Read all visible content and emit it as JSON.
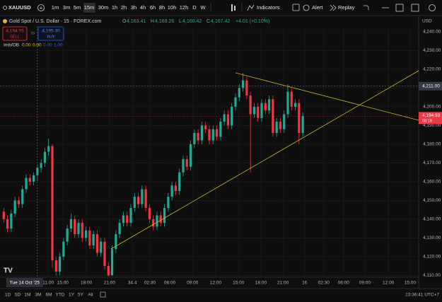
{
  "toolbar": {
    "symbol": "XAUUSD",
    "intervals": [
      "1m",
      "3m",
      "5m",
      "15m",
      "30m",
      "1h",
      "2h",
      "3h",
      "4h",
      "6h",
      "8h",
      "10h",
      "12h",
      "D",
      "W"
    ],
    "indicators": "Indicators",
    "alert": "Alert",
    "replay": "Replay"
  },
  "header": {
    "title": "Gold Spot / U.S. Dollar · 15 · FOREX.com",
    "ohlc": [
      {
        "key": "O",
        "value": "4,163.41"
      },
      {
        "key": "H",
        "value": "4,169.26"
      },
      {
        "key": "L",
        "value": "4,160.42"
      },
      {
        "key": "C",
        "value": "4,167.42"
      }
    ],
    "change": "+4.01 (+0.10%)"
  },
  "trade": {
    "sell_price": "4,194.55",
    "sell": "SELL",
    "spread": "75",
    "buy_price": "4,195.30",
    "buy": "BUY"
  },
  "indicator": {
    "name": "Imb/OB",
    "values": [
      "0.00",
      "0.00",
      "0.00",
      "1.00"
    ]
  },
  "chart_data": {
    "type": "candlestick",
    "currency": "USD",
    "up_color": "#22ab94",
    "down_color": "#f23645",
    "grid": true,
    "ohlc": [
      [
        4144,
        4146,
        4138,
        4140
      ],
      [
        4140,
        4142,
        4133,
        4135
      ],
      [
        4135,
        4145,
        4133,
        4143
      ],
      [
        4143,
        4152,
        4141,
        4150
      ],
      [
        4150,
        4152,
        4146,
        4148
      ],
      [
        4148,
        4158,
        4146,
        4156
      ],
      [
        4156,
        4164,
        4154,
        4162
      ],
      [
        4162,
        4164,
        4158,
        4160
      ],
      [
        4160,
        4165,
        4158,
        4163.41
      ],
      [
        4163.41,
        4169.26,
        4160.42,
        4167.42
      ],
      [
        4167.42,
        4172,
        4165,
        4170
      ],
      [
        4170,
        4178,
        4168,
        4176
      ],
      [
        4176,
        4183,
        4174,
        4179
      ],
      [
        4179,
        4180,
        4114,
        4118
      ],
      [
        4118,
        4120,
        4110,
        4112
      ],
      [
        4112,
        4122,
        4110,
        4120
      ],
      [
        4120,
        4130,
        4118,
        4128
      ],
      [
        4128,
        4137,
        4126,
        4135
      ],
      [
        4135,
        4143,
        4133,
        4140
      ],
      [
        4140,
        4142,
        4130,
        4132
      ],
      [
        4132,
        4140,
        4130,
        4138
      ],
      [
        4138,
        4140,
        4128,
        4130
      ],
      [
        4130,
        4136,
        4128,
        4134
      ],
      [
        4134,
        4136,
        4124,
        4126
      ],
      [
        4126,
        4134,
        4124,
        4132
      ],
      [
        4132,
        4134,
        4120,
        4122
      ],
      [
        4122,
        4130,
        4120,
        4128
      ],
      [
        4128,
        4130,
        4113,
        4115
      ],
      [
        4115,
        4117,
        4109.5,
        4110
      ],
      [
        4110,
        4126,
        4110,
        4124
      ],
      [
        4124,
        4134,
        4122,
        4132
      ],
      [
        4132,
        4140,
        4130,
        4138
      ],
      [
        4138,
        4144,
        4136,
        4142
      ],
      [
        4142,
        4144,
        4136,
        4138
      ],
      [
        4138,
        4148,
        4136,
        4146
      ],
      [
        4146,
        4154,
        4144,
        4152
      ],
      [
        4152,
        4154,
        4146,
        4148
      ],
      [
        4148,
        4158,
        4146,
        4156
      ],
      [
        4156,
        4158,
        4144,
        4146
      ],
      [
        4146,
        4148,
        4138,
        4140
      ],
      [
        4140,
        4142,
        4134,
        4136
      ],
      [
        4136,
        4144,
        4134,
        4142
      ],
      [
        4142,
        4144,
        4136,
        4138
      ],
      [
        4138,
        4148,
        4136,
        4146
      ],
      [
        4146,
        4154,
        4144,
        4152
      ],
      [
        4152,
        4160,
        4150,
        4158
      ],
      [
        4158,
        4160,
        4153,
        4155
      ],
      [
        4155,
        4167,
        4153,
        4165
      ],
      [
        4165,
        4174,
        4163,
        4172
      ],
      [
        4172,
        4174,
        4166,
        4168
      ],
      [
        4168,
        4182,
        4166,
        4180
      ],
      [
        4180,
        4188,
        4178,
        4186
      ],
      [
        4186,
        4188,
        4180,
        4182
      ],
      [
        4182,
        4192,
        4180,
        4190
      ],
      [
        4190,
        4192,
        4186,
        4188
      ],
      [
        4188,
        4190,
        4180,
        4182
      ],
      [
        4182,
        4190,
        4180,
        4188
      ],
      [
        4188,
        4190,
        4182,
        4184
      ],
      [
        4184,
        4194,
        4182,
        4192
      ],
      [
        4192,
        4198,
        4190,
        4196
      ],
      [
        4196,
        4198,
        4188,
        4190
      ],
      [
        4190,
        4202,
        4188,
        4200
      ],
      [
        4200,
        4207,
        4198,
        4205
      ],
      [
        4205,
        4212,
        4203,
        4210
      ],
      [
        4210,
        4218,
        4208,
        4214
      ],
      [
        4214,
        4216,
        4204,
        4206
      ],
      [
        4206,
        4208,
        4165,
        4196
      ],
      [
        4196,
        4202,
        4194,
        4200
      ],
      [
        4200,
        4202,
        4192,
        4194
      ],
      [
        4194,
        4204,
        4192,
        4202
      ],
      [
        4202,
        4204,
        4196,
        4198
      ],
      [
        4198,
        4206,
        4196,
        4204
      ],
      [
        4204,
        4206,
        4184,
        4186
      ],
      [
        4186,
        4194,
        4184,
        4192
      ],
      [
        4192,
        4194,
        4186,
        4188
      ],
      [
        4188,
        4198,
        4186,
        4196
      ],
      [
        4196,
        4212,
        4194,
        4208
      ],
      [
        4208,
        4210,
        4198,
        4200
      ],
      [
        4200,
        4204,
        4198,
        4202
      ],
      [
        4202,
        4204,
        4180,
        4186
      ],
      [
        4186,
        4197,
        4184,
        4194.93
      ]
    ],
    "xlim": [
      -1,
      111
    ],
    "xticks": [
      {
        "value": 11.9,
        "label": "11:00"
      },
      {
        "value": 15.8,
        "label": "15:00"
      },
      {
        "value": 22.1,
        "label": "18:00"
      },
      {
        "value": 28.3,
        "label": "21:00"
      },
      34.4,
      {
        "value": 39.1,
        "label": "02:30"
      },
      {
        "value": 44.4,
        "label": "06:00"
      },
      {
        "value": 50.5,
        "label": "09:00"
      },
      {
        "value": 56.7,
        "label": "12:00"
      },
      {
        "value": 62.8,
        "label": "15:00"
      },
      {
        "value": 68.8,
        "label": "18:00"
      },
      {
        "value": 74.7,
        "label": "21:00"
      },
      {
        "value": 80.5,
        "label": "16"
      },
      {
        "value": 85.6,
        "label": "02:30"
      },
      {
        "value": 90.9,
        "label": "06:00"
      },
      {
        "value": 96.6,
        "label": "09:00"
      },
      {
        "value": 102.9,
        "label": "12:00"
      },
      {
        "value": 108.7,
        "label": "15:00"
      }
    ],
    "ylim": [
      4109,
      4243
    ],
    "yticks": [
      {
        "value": 4110,
        "label": "4,110.00"
      },
      {
        "value": 4120,
        "label": "4,120.00"
      },
      {
        "value": 4130,
        "label": "4,130.00"
      },
      {
        "value": 4140,
        "label": "4,140.00"
      },
      {
        "value": 4150,
        "label": "4,150.00"
      },
      {
        "value": 4160,
        "label": "4,160.00"
      },
      {
        "value": 4170,
        "label": "4,170.00"
      },
      {
        "value": 4180,
        "label": "4,180.00"
      },
      {
        "value": 4190,
        "label": "4,190.00"
      },
      {
        "value": 4200,
        "label": "4,200.00"
      },
      {
        "value": 4210,
        "label": "4,210.00"
      },
      {
        "value": 4220,
        "label": "4,220.00"
      },
      {
        "value": 4230,
        "label": "4,230.00"
      },
      {
        "value": 4240,
        "label": "4,240.00"
      }
    ],
    "last_price": {
      "value": 4194.93,
      "label": "4,194.93"
    },
    "countdown": "08:19",
    "crosshair": {
      "x": {
        "value": 9,
        "label": "Tue 14 Oct '25"
      },
      "y": {
        "value": 4211,
        "label": "4,211.00"
      }
    }
  },
  "ranges": [
    "1D",
    "5D",
    "1M",
    "3M",
    "6M",
    "YTD",
    "1Y",
    "5Y",
    "All"
  ],
  "clock": "23:36:41 UTC+7"
}
